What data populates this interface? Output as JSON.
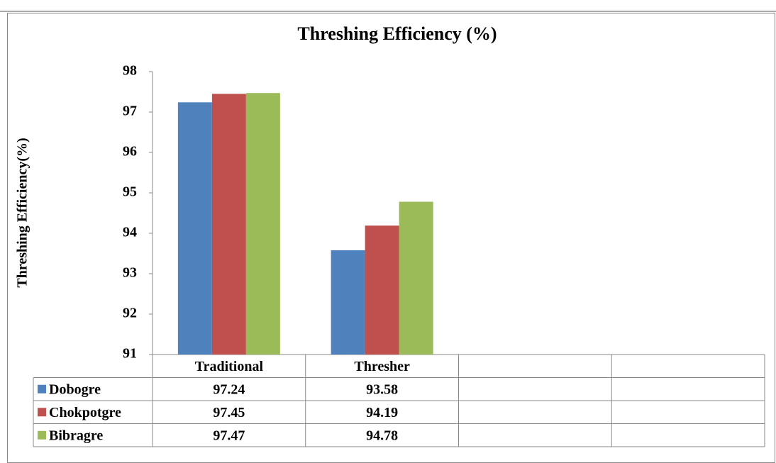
{
  "chart_data": {
    "type": "bar",
    "title": "Threshing Efficiency (%)",
    "y_label": "Threshing Efficiency(%)",
    "categories": [
      "Traditional",
      "Thresher",
      null,
      null
    ],
    "series": [
      {
        "name": "Dobogre",
        "color": "#4f81bd",
        "values": [
          97.24,
          93.58,
          null,
          null
        ]
      },
      {
        "name": "Chokpotgre",
        "color": "#c0504d",
        "values": [
          97.45,
          94.19,
          null,
          null
        ]
      },
      {
        "name": "Bibragre",
        "color": "#9bbb59",
        "values": [
          97.47,
          94.78,
          null,
          null
        ]
      }
    ],
    "ylim": [
      91,
      98
    ],
    "yticks": [
      91,
      92,
      93,
      94,
      95,
      96,
      97,
      98
    ],
    "grid": false,
    "legend": "table"
  }
}
